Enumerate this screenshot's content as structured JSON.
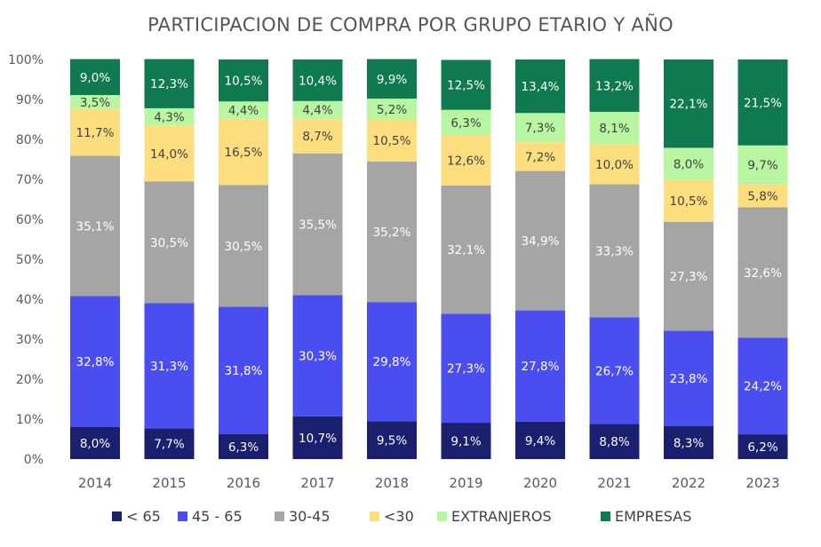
{
  "chart_data": {
    "type": "bar",
    "stacked": true,
    "title": "PARTICIPACION DE COMPRA POR GRUPO ETARIO Y AÑO",
    "xlabel": "",
    "ylabel": "",
    "ylim": [
      0,
      100
    ],
    "yticks": [
      "0%",
      "10%",
      "20%",
      "30%",
      "40%",
      "50%",
      "60%",
      "70%",
      "80%",
      "90%",
      "100%"
    ],
    "grid": false,
    "legend_position": "bottom",
    "categories": [
      "2014",
      "2015",
      "2016",
      "2017",
      "2018",
      "2019",
      "2020",
      "2021",
      "2022",
      "2023"
    ],
    "series": [
      {
        "name": "< 65",
        "color": "#1a1f6e",
        "values": [
          8.0,
          7.7,
          6.3,
          10.7,
          9.5,
          9.1,
          9.4,
          8.8,
          8.3,
          6.2
        ],
        "labels": [
          "8,0%",
          "7,7%",
          "6,3%",
          "10,7%",
          "9,5%",
          "9,1%",
          "9,4%",
          "8,8%",
          "8,3%",
          "6,2%"
        ]
      },
      {
        "name": "45 - 65",
        "color": "#4a4ef0",
        "values": [
          32.8,
          31.3,
          31.8,
          30.3,
          29.8,
          27.3,
          27.8,
          26.7,
          23.8,
          24.2
        ],
        "labels": [
          "32,8%",
          "31,3%",
          "31,8%",
          "30,3%",
          "29,8%",
          "27,3%",
          "27,8%",
          "26,7%",
          "23,8%",
          "24,2%"
        ]
      },
      {
        "name": "30-45",
        "color": "#a5a5a5",
        "values": [
          35.1,
          30.5,
          30.5,
          35.5,
          35.2,
          32.1,
          34.9,
          33.3,
          27.3,
          32.6
        ],
        "labels": [
          "35,1%",
          "30,5%",
          "30,5%",
          "35,5%",
          "35,2%",
          "32,1%",
          "34,9%",
          "33,3%",
          "27,3%",
          "32,6%"
        ]
      },
      {
        "name": "<30",
        "color": "#fdde7f",
        "values": [
          11.7,
          14.0,
          16.5,
          8.7,
          10.5,
          12.6,
          7.2,
          10.0,
          10.5,
          5.8
        ],
        "labels": [
          "11,7%",
          "14,0%",
          "16,5%",
          "8,7%",
          "10,5%",
          "12,6%",
          "7,2%",
          "10,0%",
          "10,5%",
          "5,8%"
        ]
      },
      {
        "name": "EXTRANJEROS",
        "color": "#b9f6a2",
        "values": [
          3.5,
          4.3,
          4.4,
          4.4,
          5.2,
          6.3,
          7.3,
          8.1,
          8.0,
          9.7
        ],
        "labels": [
          "3,5%",
          "4,3%",
          "4,4%",
          "4,4%",
          "5,2%",
          "6,3%",
          "7,3%",
          "8,1%",
          "8,0%",
          "9,7%"
        ]
      },
      {
        "name": "EMPRESAS",
        "color": "#0f7a4f",
        "values": [
          9.0,
          12.3,
          10.5,
          10.4,
          9.9,
          12.5,
          13.4,
          13.2,
          22.1,
          21.5
        ],
        "labels": [
          "9,0%",
          "12,3%",
          "10,5%",
          "10,4%",
          "9,9%",
          "12,5%",
          "13,4%",
          "13,2%",
          "22,1%",
          "21,5%"
        ]
      }
    ]
  }
}
